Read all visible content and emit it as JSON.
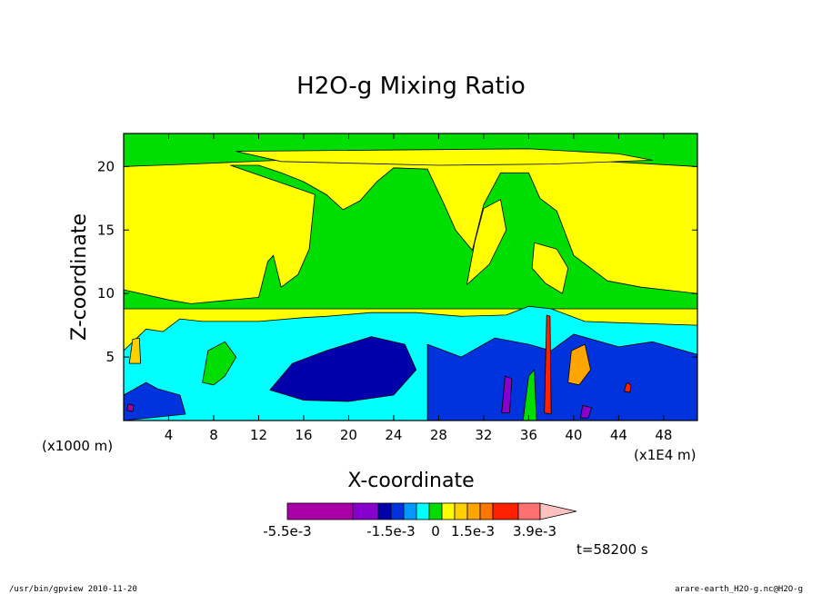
{
  "chart_data": {
    "type": "heatmap",
    "title": "H2O-g Mixing Ratio",
    "xlabel": "X-coordinate",
    "ylabel": "Z-coordinate",
    "x_scale_left": "(x1000 m)",
    "x_scale_right": "(x1E4 m)",
    "xlim": [
      0,
      51
    ],
    "ylim": [
      0,
      22.6
    ],
    "x_ticks": [
      "4",
      "8",
      "12",
      "16",
      "20",
      "24",
      "28",
      "32",
      "36",
      "40",
      "44",
      "48"
    ],
    "x_tick_values": [
      4,
      8,
      12,
      16,
      20,
      24,
      28,
      32,
      36,
      40,
      44,
      48
    ],
    "y_ticks": [
      "5",
      "10",
      "15",
      "20"
    ],
    "y_tick_values": [
      5,
      10,
      15,
      20
    ],
    "time_label": "t=58200 s",
    "colorbar": {
      "labels": [
        "-5.5e-3",
        "-1.5e-3",
        "0",
        "1.5e-3",
        "3.9e-3"
      ],
      "colors": [
        "#aa00aa",
        "#aa00aa",
        "#8800cc",
        "#0000aa",
        "#0033dd",
        "#0099ff",
        "#00ffff",
        "#00dd00",
        "#ffff00",
        "#ffd000",
        "#ffa500",
        "#ff7700",
        "#ff2000",
        "#ff7070",
        "#ffc0c0"
      ]
    },
    "regions": [
      {
        "color": "#00dd00",
        "points": [
          [
            0,
            22.6
          ],
          [
            51,
            22.6
          ],
          [
            51,
            20
          ],
          [
            45,
            20.3
          ],
          [
            38,
            20.6
          ],
          [
            30,
            21
          ],
          [
            22,
            21.1
          ],
          [
            14,
            20.5
          ],
          [
            6,
            20.2
          ],
          [
            0,
            20
          ]
        ]
      },
      {
        "color": "#ffff00",
        "points": [
          [
            10,
            21.2
          ],
          [
            36,
            21.4
          ],
          [
            44,
            21
          ],
          [
            47,
            20.5
          ],
          [
            38,
            20.2
          ],
          [
            28,
            20.1
          ],
          [
            14,
            20.4
          ]
        ]
      },
      {
        "color": "#00dd00",
        "points": [
          [
            9.5,
            20.1
          ],
          [
            12,
            20.1
          ],
          [
            14,
            19.5
          ],
          [
            16,
            18.8
          ],
          [
            18,
            17.8
          ],
          [
            19.5,
            16.6
          ],
          [
            21,
            17.3
          ],
          [
            22.5,
            18.8
          ],
          [
            24,
            19.9
          ],
          [
            27,
            19.8
          ],
          [
            28.5,
            17
          ],
          [
            29.5,
            15
          ],
          [
            31,
            13.4
          ],
          [
            32,
            17
          ],
          [
            33.5,
            19.5
          ],
          [
            36,
            19.5
          ],
          [
            37,
            17.5
          ],
          [
            38.5,
            16.5
          ],
          [
            40,
            13
          ],
          [
            43,
            11
          ],
          [
            46,
            10.5
          ],
          [
            49,
            10.2
          ],
          [
            51,
            10
          ],
          [
            51,
            8.8
          ],
          [
            0,
            8.8
          ],
          [
            0,
            10.3
          ],
          [
            4,
            9.5
          ],
          [
            6,
            9.2
          ],
          [
            12,
            9.7
          ],
          [
            12.8,
            12.5
          ],
          [
            13.3,
            13
          ],
          [
            14,
            10.5
          ],
          [
            15.5,
            11.5
          ],
          [
            16.5,
            13.5
          ],
          [
            17,
            17.8
          ]
        ]
      },
      {
        "color": "#ffff00",
        "points": [
          [
            30.5,
            10.7
          ],
          [
            32.5,
            12.3
          ],
          [
            34,
            15
          ],
          [
            33.5,
            17.4
          ],
          [
            32,
            16.7
          ],
          [
            31.2,
            14
          ]
        ]
      },
      {
        "color": "#ffff00",
        "points": [
          [
            36.5,
            14
          ],
          [
            38.5,
            13.5
          ],
          [
            39.5,
            12
          ],
          [
            39,
            10
          ],
          [
            37.5,
            10.8
          ],
          [
            36.3,
            12
          ]
        ]
      },
      {
        "color": "#00ffff",
        "points": [
          [
            0,
            5.5
          ],
          [
            2,
            7.2
          ],
          [
            3.5,
            7
          ],
          [
            5,
            8
          ],
          [
            7,
            7.8
          ],
          [
            12,
            7.8
          ],
          [
            16,
            8.1
          ],
          [
            18,
            8.2
          ],
          [
            22,
            8.5
          ],
          [
            26,
            8.5
          ],
          [
            30,
            8.2
          ],
          [
            34,
            8.3
          ],
          [
            36,
            9
          ],
          [
            38,
            8.8
          ],
          [
            41,
            7.8
          ],
          [
            44,
            7.7
          ],
          [
            51,
            7.5
          ],
          [
            51,
            0
          ],
          [
            0,
            0
          ]
        ]
      },
      {
        "color": "#00dd00",
        "points": [
          [
            7,
            3
          ],
          [
            7.5,
            5.5
          ],
          [
            9,
            6.2
          ],
          [
            10,
            5
          ],
          [
            9,
            3.5
          ],
          [
            8,
            2.8
          ]
        ]
      },
      {
        "color": "#0000aa",
        "points": [
          [
            13,
            2.4
          ],
          [
            15,
            4.5
          ],
          [
            18,
            5.5
          ],
          [
            22,
            6.6
          ],
          [
            25,
            6
          ],
          [
            26,
            4
          ],
          [
            24,
            2
          ],
          [
            20,
            1.5
          ],
          [
            16,
            1.6
          ]
        ]
      },
      {
        "color": "#0033dd",
        "points": [
          [
            0,
            2
          ],
          [
            2,
            3
          ],
          [
            3,
            2.5
          ],
          [
            5,
            2
          ],
          [
            5.5,
            0.5
          ],
          [
            0,
            0
          ]
        ]
      },
      {
        "color": "#0033dd",
        "points": [
          [
            27,
            0.5
          ],
          [
            27,
            6
          ],
          [
            30,
            5
          ],
          [
            33,
            6.5
          ],
          [
            36,
            6
          ],
          [
            38,
            5.5
          ],
          [
            40,
            6.8
          ],
          [
            44,
            5.8
          ],
          [
            47,
            6.2
          ],
          [
            51,
            5.2
          ],
          [
            51,
            0
          ],
          [
            27,
            0
          ]
        ]
      },
      {
        "color": "#00dd00",
        "points": [
          [
            35.5,
            0
          ],
          [
            36,
            3.5
          ],
          [
            36.5,
            4
          ],
          [
            36.7,
            0
          ]
        ]
      },
      {
        "color": "#ff2000",
        "points": [
          [
            37.4,
            0.6
          ],
          [
            37.6,
            8.3
          ],
          [
            37.9,
            8.2
          ],
          [
            38,
            0.5
          ]
        ]
      },
      {
        "color": "#ffa500",
        "points": [
          [
            39.5,
            3
          ],
          [
            39.8,
            5.5
          ],
          [
            41,
            6
          ],
          [
            41.5,
            4
          ],
          [
            40.5,
            2.8
          ]
        ]
      },
      {
        "color": "#ffd000",
        "points": [
          [
            0.5,
            4.5
          ],
          [
            0.8,
            6.4
          ],
          [
            1.4,
            6.5
          ],
          [
            1.5,
            4.5
          ]
        ]
      },
      {
        "color": "#8800cc",
        "points": [
          [
            33.6,
            0.6
          ],
          [
            33.9,
            3.5
          ],
          [
            34.5,
            3.3
          ],
          [
            34.3,
            0.6
          ]
        ]
      },
      {
        "color": "#8800cc",
        "points": [
          [
            40.6,
            0.2
          ],
          [
            40.8,
            1.2
          ],
          [
            41.6,
            1
          ],
          [
            41.3,
            0.2
          ]
        ]
      },
      {
        "color": "#ff2000",
        "points": [
          [
            44.5,
            2.3
          ],
          [
            44.7,
            3
          ],
          [
            45.1,
            2.8
          ],
          [
            45,
            2.2
          ]
        ]
      },
      {
        "color": "#aa00aa",
        "points": [
          [
            0.3,
            0.8
          ],
          [
            0.4,
            1.3
          ],
          [
            0.9,
            1.2
          ],
          [
            0.8,
            0.7
          ]
        ]
      }
    ]
  },
  "footer": {
    "left": "/usr/bin/gpview  2010-11-20",
    "right": "arare-earth_H2O-g.nc@H2O-g"
  }
}
